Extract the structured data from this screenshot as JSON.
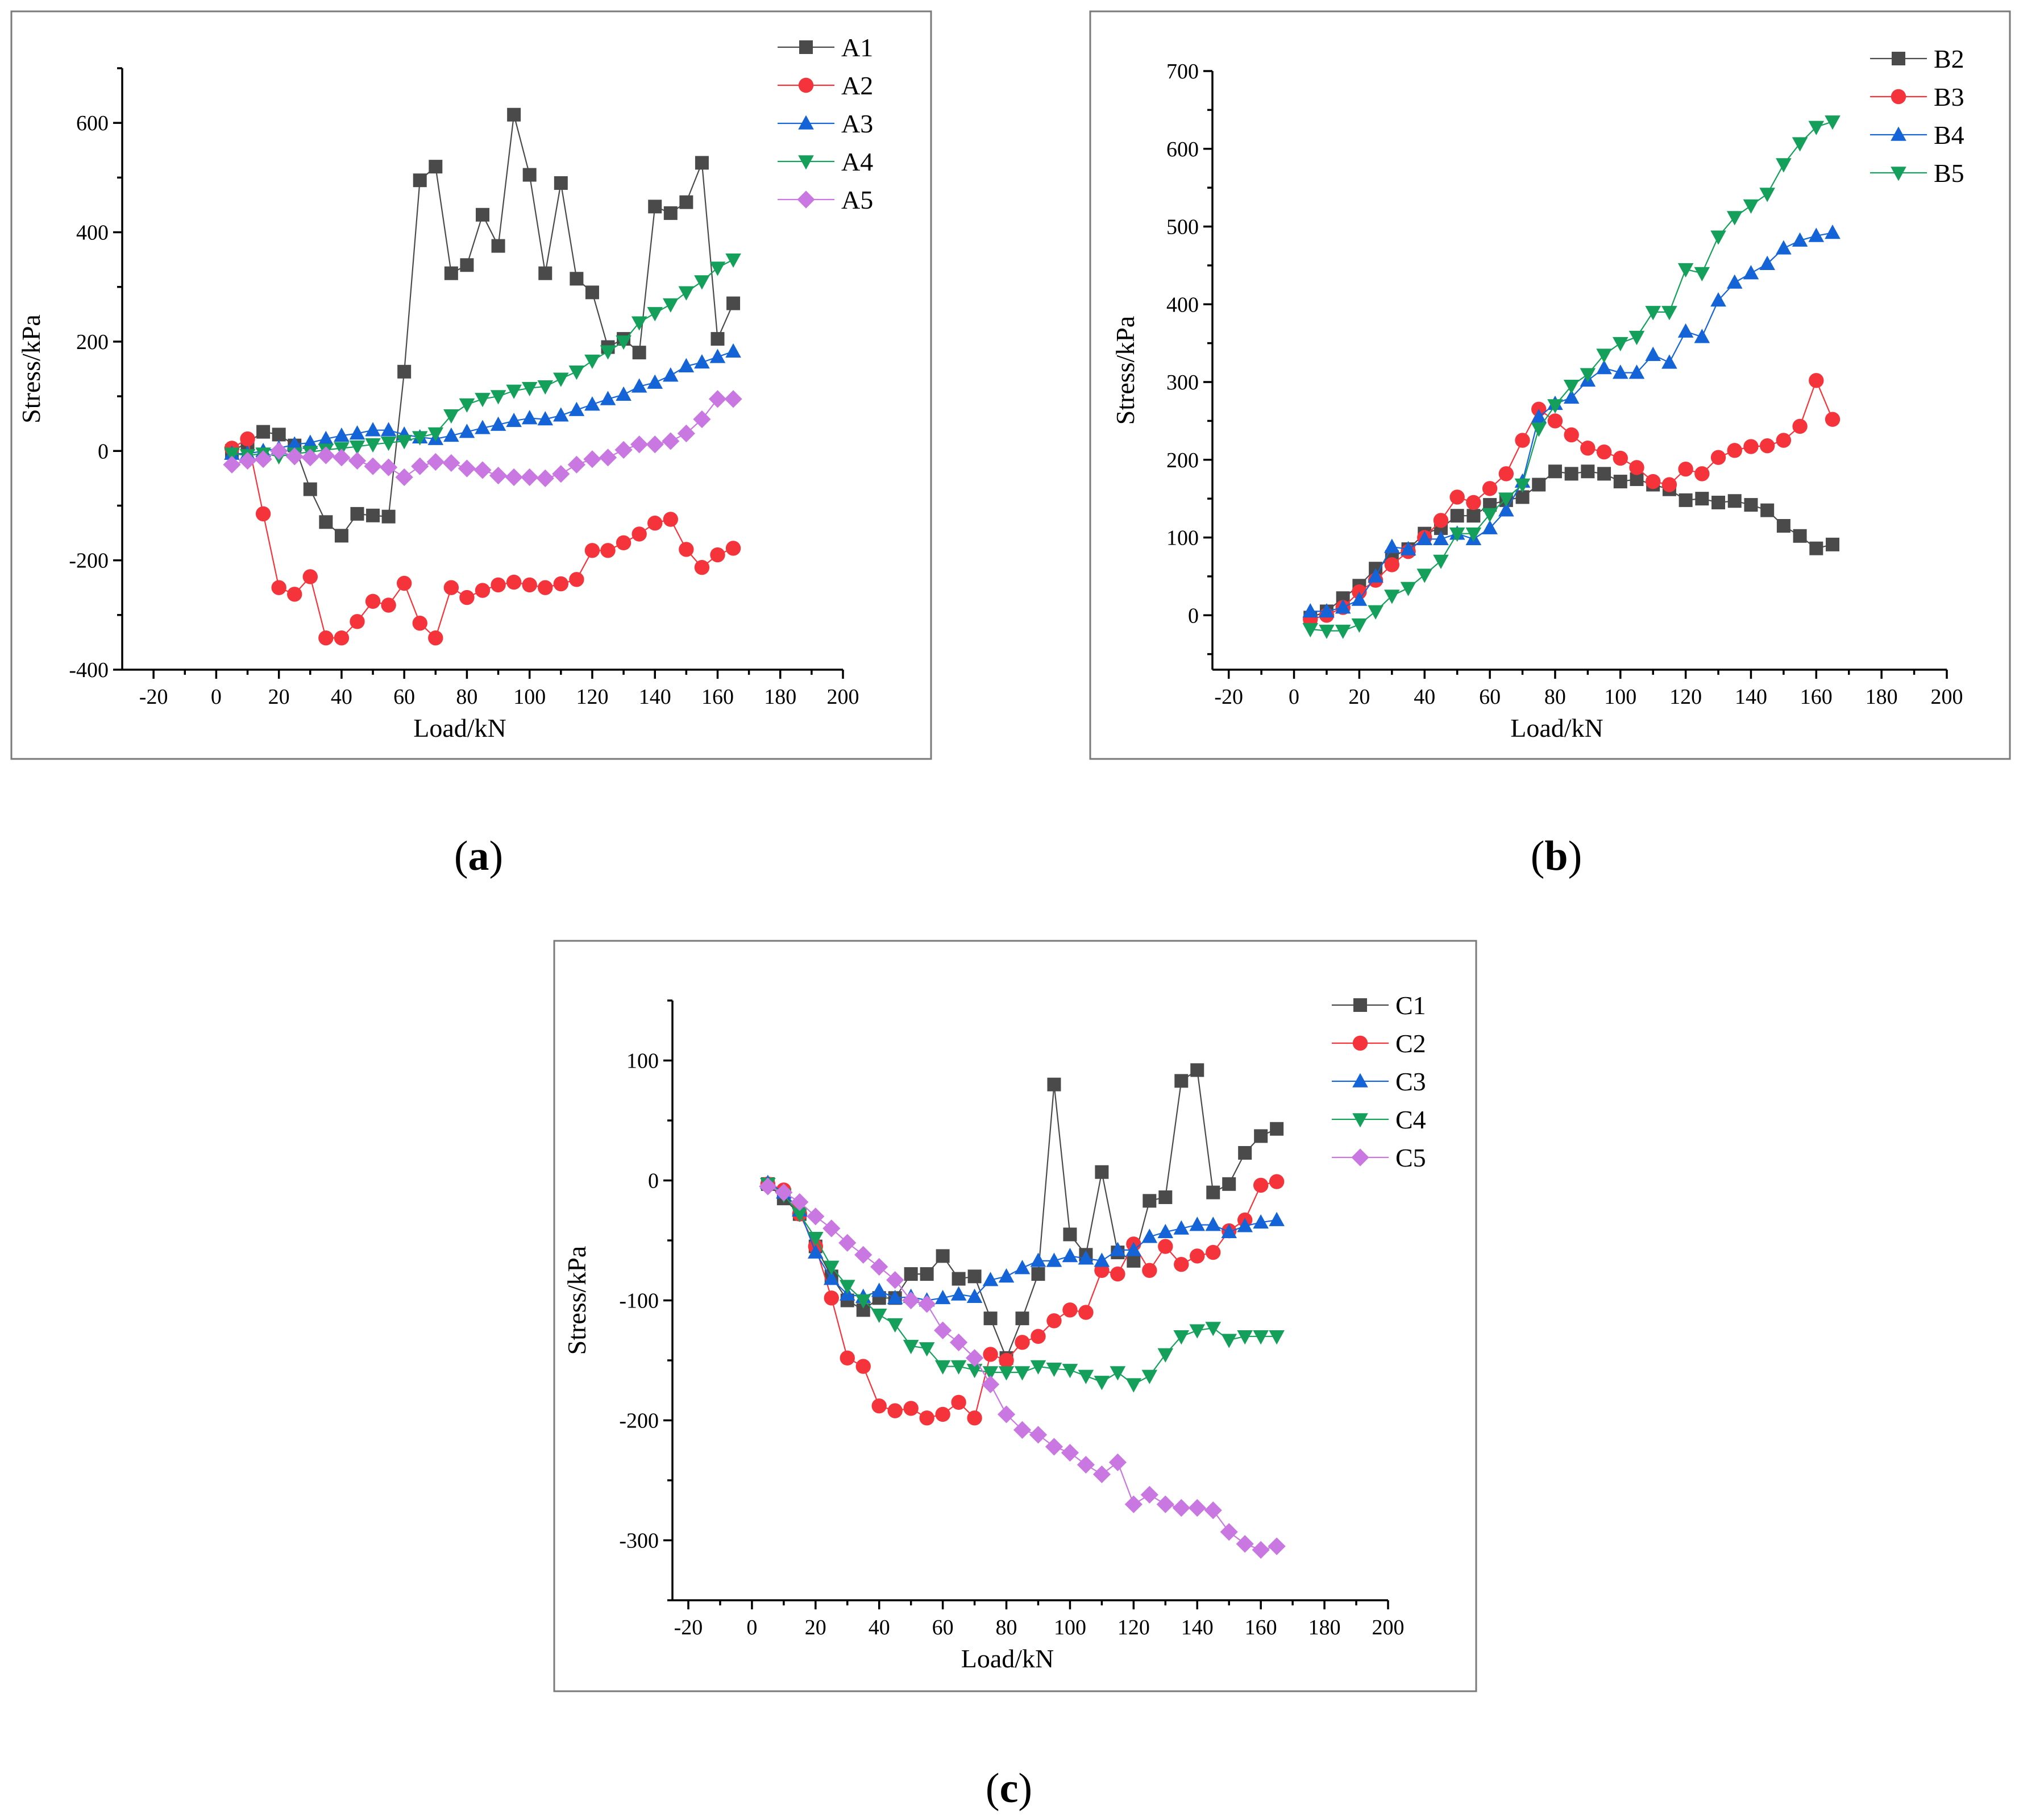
{
  "colors": {
    "series1": "#4a4a4a",
    "series2": "#f5333a",
    "series3": "#1464d8",
    "series4": "#14a05a",
    "series5": "#c878e0"
  },
  "captions": [
    {
      "open": "(",
      "letter": "a",
      "close": ")"
    },
    {
      "open": "(",
      "letter": "b",
      "close": ")"
    },
    {
      "open": "(",
      "letter": "c",
      "close": ")"
    }
  ],
  "chart_data": [
    {
      "type": "line",
      "panel": "a",
      "xlabel": "Load/kN",
      "ylabel": "Stress/kPa",
      "xlim": [
        -30,
        200
      ],
      "ylim": [
        -400,
        700
      ],
      "xticks": [
        -20,
        0,
        20,
        40,
        60,
        80,
        100,
        120,
        140,
        160,
        180,
        200
      ],
      "yticks": [
        -400,
        -200,
        0,
        200,
        400,
        600
      ],
      "legend_position": "top-right",
      "x": [
        5,
        10,
        15,
        20,
        25,
        30,
        35,
        40,
        45,
        50,
        55,
        60,
        65,
        70,
        75,
        80,
        85,
        90,
        95,
        100,
        105,
        110,
        115,
        120,
        125,
        130,
        135,
        140,
        145,
        150,
        155,
        160,
        165
      ],
      "series": [
        {
          "name": "A1",
          "marker": "square",
          "values": [
            0,
            15,
            35,
            30,
            10,
            -70,
            -130,
            -155,
            -115,
            -118,
            -120,
            145,
            495,
            520,
            325,
            340,
            432,
            375,
            615,
            505,
            325,
            490,
            315,
            290,
            190,
            205,
            180,
            447,
            435,
            455,
            527,
            205,
            270
          ]
        },
        {
          "name": "A2",
          "marker": "circle",
          "values": [
            5,
            22,
            -115,
            -250,
            -262,
            -230,
            -342,
            -342,
            -312,
            -275,
            -282,
            -242,
            -315,
            -342,
            -250,
            -268,
            -255,
            -245,
            -240,
            -245,
            -250,
            -243,
            -235,
            -182,
            -182,
            -168,
            -152,
            -132,
            -125,
            -180,
            -213,
            -190,
            -178
          ]
        },
        {
          "name": "A3",
          "marker": "triangle-up",
          "values": [
            -5,
            -5,
            0,
            5,
            12,
            15,
            22,
            28,
            32,
            38,
            38,
            30,
            25,
            22,
            28,
            35,
            42,
            48,
            55,
            60,
            58,
            65,
            75,
            85,
            95,
            103,
            118,
            125,
            138,
            155,
            162,
            172,
            182
          ]
        },
        {
          "name": "A4",
          "marker": "triangle-down",
          "values": [
            -5,
            -8,
            -5,
            -10,
            -5,
            -2,
            2,
            5,
            8,
            12,
            15,
            18,
            25,
            32,
            65,
            85,
            95,
            100,
            110,
            115,
            118,
            132,
            145,
            165,
            182,
            200,
            235,
            252,
            268,
            290,
            310,
            335,
            350
          ]
        },
        {
          "name": "A5",
          "marker": "diamond",
          "values": [
            -25,
            -18,
            -15,
            0,
            -10,
            -12,
            -8,
            -12,
            -18,
            -28,
            -30,
            -48,
            -28,
            -20,
            -22,
            -32,
            -35,
            -45,
            -48,
            -48,
            -50,
            -42,
            -25,
            -15,
            -12,
            2,
            12,
            12,
            18,
            32,
            58,
            95,
            95
          ]
        }
      ]
    },
    {
      "type": "line",
      "panel": "b",
      "xlabel": "Load/kN",
      "ylabel": "Stress/kPa",
      "xlim": [
        -25,
        200
      ],
      "ylim": [
        -70,
        700
      ],
      "xticks": [
        -20,
        0,
        20,
        40,
        60,
        80,
        100,
        120,
        140,
        160,
        180,
        200
      ],
      "yticks": [
        0,
        100,
        200,
        300,
        400,
        500,
        600,
        700
      ],
      "legend_position": "top-right",
      "x": [
        5,
        10,
        15,
        20,
        25,
        30,
        35,
        40,
        45,
        50,
        55,
        60,
        65,
        70,
        75,
        80,
        85,
        90,
        95,
        100,
        105,
        110,
        115,
        120,
        125,
        130,
        135,
        140,
        145,
        150,
        155,
        160,
        165
      ],
      "series": [
        {
          "name": "B2",
          "marker": "square",
          "values": [
            -3,
            5,
            22,
            38,
            60,
            75,
            85,
            105,
            112,
            128,
            128,
            142,
            148,
            152,
            168,
            185,
            182,
            185,
            182,
            172,
            175,
            168,
            162,
            148,
            150,
            145,
            147,
            142,
            135,
            115,
            102,
            86,
            91
          ]
        },
        {
          "name": "B3",
          "marker": "circle",
          "values": [
            -5,
            0,
            10,
            30,
            45,
            65,
            82,
            100,
            122,
            152,
            145,
            163,
            182,
            225,
            265,
            250,
            232,
            215,
            210,
            202,
            190,
            172,
            168,
            188,
            182,
            203,
            212,
            217,
            218,
            225,
            243,
            302,
            252
          ]
        },
        {
          "name": "B4",
          "marker": "triangle-up",
          "values": [
            5,
            5,
            10,
            20,
            50,
            88,
            85,
            98,
            98,
            105,
            98,
            112,
            135,
            172,
            255,
            272,
            280,
            302,
            318,
            312,
            312,
            335,
            325,
            365,
            358,
            405,
            428,
            440,
            452,
            472,
            482,
            488,
            492
          ]
        },
        {
          "name": "B5",
          "marker": "triangle-down",
          "values": [
            -18,
            -20,
            -20,
            -12,
            5,
            25,
            35,
            52,
            70,
            105,
            105,
            130,
            150,
            168,
            240,
            270,
            295,
            310,
            335,
            350,
            358,
            390,
            390,
            445,
            440,
            487,
            512,
            527,
            542,
            580,
            607,
            628,
            635
          ]
        }
      ]
    },
    {
      "type": "line",
      "panel": "c",
      "xlabel": "Load/kN",
      "ylabel": "Stress/kPa",
      "xlim": [
        -25,
        200
      ],
      "ylim": [
        -350,
        150
      ],
      "xticks": [
        -20,
        0,
        20,
        40,
        60,
        80,
        100,
        120,
        140,
        160,
        180,
        200
      ],
      "yticks": [
        -300,
        -200,
        -100,
        0,
        100
      ],
      "legend_position": "top-right",
      "x": [
        5,
        10,
        15,
        20,
        25,
        30,
        35,
        40,
        45,
        50,
        55,
        60,
        65,
        70,
        75,
        80,
        85,
        90,
        95,
        100,
        105,
        110,
        115,
        120,
        125,
        130,
        135,
        140,
        145,
        150,
        155,
        160,
        165
      ],
      "series": [
        {
          "name": "C1",
          "marker": "square",
          "values": [
            -3,
            -15,
            -28,
            -55,
            -80,
            -100,
            -108,
            -98,
            -98,
            -78,
            -78,
            -63,
            -82,
            -80,
            -115,
            -148,
            -115,
            -78,
            80,
            -45,
            -62,
            7,
            -60,
            -67,
            -17,
            -14,
            83,
            92,
            -10,
            -3,
            23,
            37,
            43
          ]
        },
        {
          "name": "C2",
          "marker": "circle",
          "values": [
            -3,
            -8,
            -28,
            -55,
            -98,
            -148,
            -155,
            -188,
            -192,
            -190,
            -198,
            -195,
            -185,
            -198,
            -145,
            -150,
            -135,
            -130,
            -117,
            -108,
            -110,
            -75,
            -78,
            -53,
            -75,
            -55,
            -70,
            -63,
            -60,
            -42,
            -33,
            -4,
            -1
          ]
        },
        {
          "name": "C3",
          "marker": "triangle-up",
          "values": [
            -2,
            -10,
            -25,
            -60,
            -82,
            -95,
            -97,
            -92,
            -98,
            -97,
            -100,
            -98,
            -95,
            -97,
            -83,
            -80,
            -73,
            -67,
            -67,
            -63,
            -65,
            -67,
            -58,
            -58,
            -47,
            -43,
            -40,
            -37,
            -37,
            -43,
            -38,
            -35,
            -33
          ]
        },
        {
          "name": "C4",
          "marker": "triangle-down",
          "values": [
            -3,
            -12,
            -28,
            -48,
            -72,
            -88,
            -100,
            -112,
            -120,
            -138,
            -140,
            -155,
            -155,
            -158,
            -160,
            -160,
            -160,
            -155,
            -157,
            -158,
            -163,
            -168,
            -160,
            -170,
            -163,
            -145,
            -130,
            -125,
            -123,
            -133,
            -130,
            -130,
            -130
          ]
        },
        {
          "name": "C5",
          "marker": "diamond",
          "values": [
            -5,
            -10,
            -18,
            -30,
            -40,
            -52,
            -62,
            -72,
            -83,
            -100,
            -103,
            -125,
            -135,
            -148,
            -170,
            -195,
            -208,
            -212,
            -222,
            -227,
            -237,
            -245,
            -235,
            -270,
            -262,
            -270,
            -273,
            -273,
            -275,
            -293,
            -303,
            -308,
            -305
          ]
        }
      ]
    }
  ]
}
